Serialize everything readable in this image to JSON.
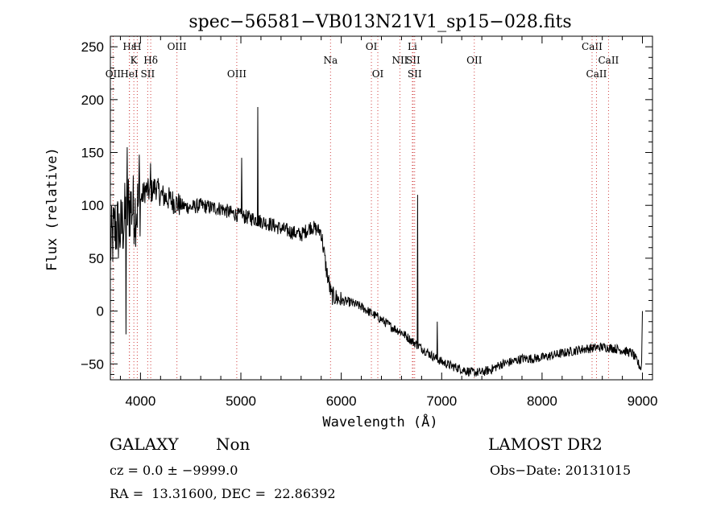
{
  "chart_data": {
    "type": "line",
    "title": "spec−56581−VB013N21V1_sp15−028.fits",
    "xlabel": "Wavelength (Å)",
    "ylabel": "Flux (relative)",
    "xlim": [
      3700,
      9100
    ],
    "ylim": [
      -65,
      260
    ],
    "xticks": [
      4000,
      5000,
      6000,
      7000,
      8000,
      9000
    ],
    "yticks": [
      -50,
      0,
      50,
      100,
      150,
      200,
      250
    ],
    "ytick_labels": [
      "−50",
      "0",
      "50",
      "100",
      "150",
      "200",
      "250"
    ],
    "spectrum_anchors": {
      "x": [
        3700,
        3750,
        3800,
        3850,
        3900,
        3950,
        4000,
        4050,
        4100,
        4150,
        4200,
        4300,
        4400,
        4500,
        4600,
        4700,
        4800,
        4900,
        5000,
        5100,
        5200,
        5300,
        5400,
        5500,
        5600,
        5700,
        5800,
        5850,
        5900,
        6000,
        6100,
        6200,
        6300,
        6400,
        6500,
        6600,
        6700,
        6800,
        6900,
        7000,
        7100,
        7200,
        7300,
        7400,
        7500,
        7600,
        7700,
        7800,
        7900,
        8000,
        8100,
        8200,
        8300,
        8400,
        8500,
        8600,
        8700,
        8800,
        8900,
        8990,
        9000
      ],
      "y": [
        60,
        80,
        75,
        90,
        100,
        95,
        105,
        115,
        112,
        118,
        110,
        105,
        100,
        98,
        100,
        98,
        97,
        93,
        90,
        88,
        85,
        82,
        78,
        75,
        72,
        80,
        75,
        40,
        15,
        10,
        8,
        4,
        -2,
        -8,
        -15,
        -20,
        -28,
        -35,
        -42,
        -48,
        -52,
        -55,
        -58,
        -58,
        -55,
        -50,
        -48,
        -45,
        -45,
        -44,
        -42,
        -40,
        -38,
        -36,
        -35,
        -34,
        -35,
        -37,
        -40,
        -55,
        -5
      ]
    },
    "emission_spikes": [
      {
        "x": 3855,
        "y": -22
      },
      {
        "x": 3870,
        "y": 155
      },
      {
        "x": 3880,
        "y": 125
      },
      {
        "x": 3990,
        "y": 148
      },
      {
        "x": 4102,
        "y": 140
      },
      {
        "x": 5007,
        "y": 145
      },
      {
        "x": 5170,
        "y": 193
      },
      {
        "x": 6760,
        "y": 110
      },
      {
        "x": 6955,
        "y": -10
      }
    ],
    "line_markers": [
      {
        "label": "Hε",
        "x": 3890,
        "row": 0
      },
      {
        "label": "H",
        "x": 3968,
        "row": 0
      },
      {
        "label": "K",
        "x": 3934,
        "row": 1
      },
      {
        "label": "Hδ",
        "x": 4102,
        "row": 1
      },
      {
        "label": "OII",
        "x": 3727,
        "row": 2
      },
      {
        "label": "HeI",
        "x": 3889,
        "row": 2
      },
      {
        "label": "SII",
        "x": 4072,
        "row": 2
      },
      {
        "label": "OIII",
        "x": 4363,
        "row": 0
      },
      {
        "label": "OIII",
        "x": 4959,
        "row": 2
      },
      {
        "label": "Na",
        "x": 5893,
        "row": 1
      },
      {
        "label": "OI",
        "x": 6300,
        "row": 0
      },
      {
        "label": "OI",
        "x": 6364,
        "row": 2
      },
      {
        "label": "Li",
        "x": 6708,
        "row": 0
      },
      {
        "label": "NII",
        "x": 6584,
        "row": 1
      },
      {
        "label": "SII",
        "x": 6716,
        "row": 1
      },
      {
        "label": "SII",
        "x": 6731,
        "row": 2
      },
      {
        "label": "OII",
        "x": 7325,
        "row": 1
      },
      {
        "label": "CaII",
        "x": 8498,
        "row": 0
      },
      {
        "label": "CaII",
        "x": 8662,
        "row": 1
      },
      {
        "label": "CaII",
        "x": 8542,
        "row": 2
      }
    ]
  },
  "info": {
    "object_class": "GALAXY",
    "subclass": "Non",
    "survey": "LAMOST DR2",
    "cz_line": "cz = 0.0 ± −9999.0",
    "obs_date_line": "Obs−Date: 20131015",
    "coords_line": "RA =  13.31600, DEC =  22.86392"
  }
}
